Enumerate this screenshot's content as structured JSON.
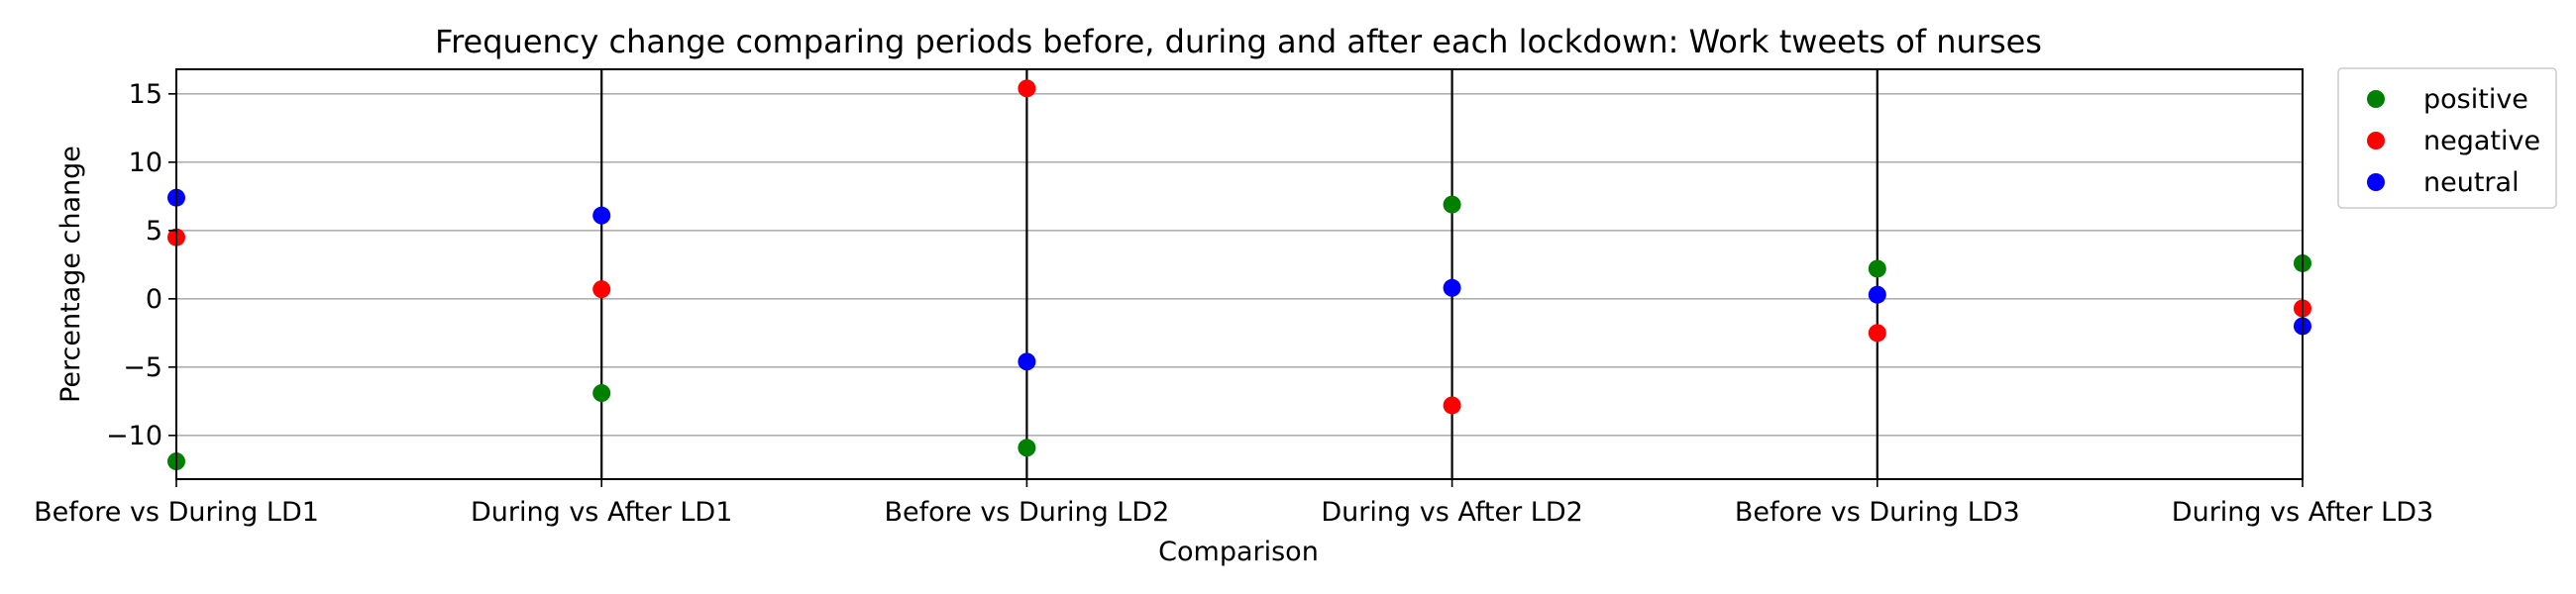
{
  "chart_data": {
    "type": "scatter",
    "title": "Frequency change comparing periods before, during and after each lockdown: Work tweets of nurses",
    "xlabel": "Comparison",
    "ylabel": "Percentage change",
    "categories": [
      "Before vs During LD1",
      "During vs After LD1",
      "Before vs During LD2",
      "During vs After LD2",
      "Before vs During LD3",
      "During vs After LD3"
    ],
    "ylim": [
      -13.2,
      16.8
    ],
    "yticks": [
      -10,
      -5,
      0,
      5,
      10,
      15
    ],
    "ytick_labels": [
      "−10",
      "−5",
      "0",
      "5",
      "10",
      "15"
    ],
    "grid": "horizontal",
    "vertical_lines_at": [
      1,
      2,
      3,
      4
    ],
    "legend_position": "outside-top-right",
    "series": [
      {
        "name": "positive",
        "color": "#008000",
        "values": [
          -11.9,
          -6.9,
          -10.9,
          6.9,
          2.2,
          2.6
        ]
      },
      {
        "name": "negative",
        "color": "#ff0000",
        "values": [
          4.5,
          0.7,
          15.4,
          -7.8,
          -2.5,
          -0.7
        ]
      },
      {
        "name": "neutral",
        "color": "#0000ff",
        "values": [
          7.4,
          6.1,
          -4.6,
          0.8,
          0.3,
          -2.0
        ]
      }
    ]
  }
}
